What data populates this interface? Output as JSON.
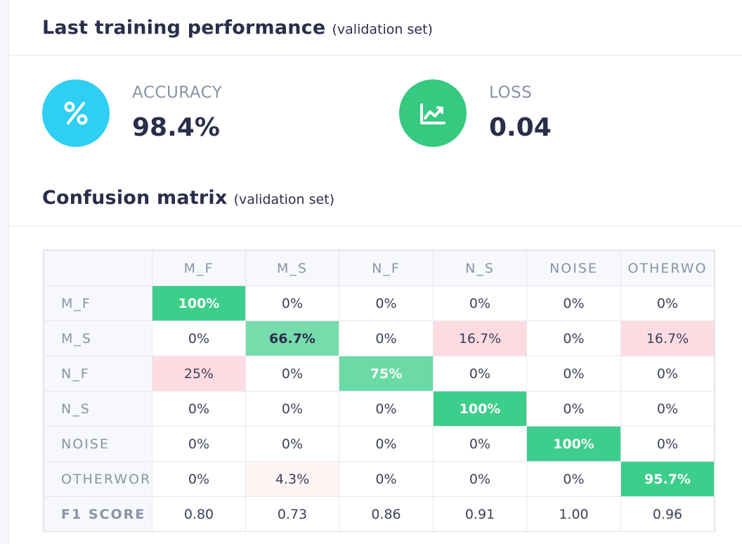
{
  "performance": {
    "title": "Last training performance",
    "subtitle": "(validation set)"
  },
  "metrics": {
    "accuracy": {
      "label": "ACCURACY",
      "value": "98.4%",
      "icon": "percent-icon",
      "color": "#2ecff3"
    },
    "loss": {
      "label": "LOSS",
      "value": "0.04",
      "icon": "chart-line-icon",
      "color": "#36c97f"
    }
  },
  "confusion": {
    "title": "Confusion matrix",
    "subtitle": "(validation set)",
    "columns": [
      "M_F",
      "M_S",
      "N_F",
      "N_S",
      "NOISE",
      "OTHERWO"
    ],
    "rows": [
      {
        "label": "M_F",
        "cells": [
          "100%",
          "0%",
          "0%",
          "0%",
          "0%",
          "0%"
        ]
      },
      {
        "label": "M_S",
        "cells": [
          "0%",
          "66.7%",
          "0%",
          "16.7%",
          "0%",
          "16.7%"
        ]
      },
      {
        "label": "N_F",
        "cells": [
          "25%",
          "0%",
          "75%",
          "0%",
          "0%",
          "0%"
        ]
      },
      {
        "label": "N_S",
        "cells": [
          "0%",
          "0%",
          "0%",
          "100%",
          "0%",
          "0%"
        ]
      },
      {
        "label": "NOISE",
        "cells": [
          "0%",
          "0%",
          "0%",
          "0%",
          "100%",
          "0%"
        ]
      },
      {
        "label": "OTHERWOR",
        "cells": [
          "0%",
          "4.3%",
          "0%",
          "0%",
          "0%",
          "95.7%"
        ]
      }
    ],
    "f1": {
      "label": "F1 SCORE",
      "values": [
        "0.80",
        "0.73",
        "0.86",
        "0.91",
        "1.00",
        "0.96"
      ]
    }
  }
}
